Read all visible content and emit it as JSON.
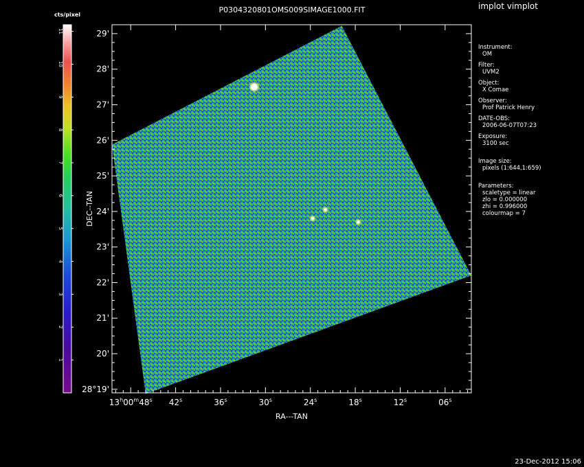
{
  "app_title": "implot vimplot",
  "timestamp": "23-Dec-2012 15:06",
  "chart_data": {
    "type": "heatmap",
    "title": "P0304320801OMS009SIMAGE1000.FIT",
    "xlabel": "RA---TAN",
    "ylabel": "DEC--TAN",
    "x_ticks": [
      {
        "h": "13",
        "m": "00",
        "s": "48"
      },
      {
        "s": "42"
      },
      {
        "s": "36"
      },
      {
        "s": "30"
      },
      {
        "s": "24"
      },
      {
        "s": "18"
      },
      {
        "s": "12"
      },
      {
        "s": "06"
      }
    ],
    "y_ticks": [
      "28°19'",
      "20'",
      "21'",
      "22'",
      "23'",
      "24'",
      "25'",
      "26'",
      "27'",
      "28'",
      "29'"
    ],
    "x_tick_values_sec": [
      48,
      42,
      36,
      30,
      24,
      18,
      12,
      6
    ],
    "y_tick_values_arcmin": [
      19,
      20,
      21,
      22,
      23,
      24,
      25,
      26,
      27,
      28,
      29
    ],
    "xlim_sec": [
      50.5,
      2.5
    ],
    "ylim_arcmin": [
      18.9,
      29.25
    ],
    "colorbar": {
      "label": "cts/pixel",
      "min": 0,
      "max": 11,
      "ticks": [
        1,
        2,
        3,
        4,
        5,
        6,
        7,
        8,
        9,
        10,
        11
      ]
    },
    "image_corners_ra_dec": [
      [
        46.0,
        18.87
      ],
      [
        50.5,
        25.88
      ],
      [
        19.8,
        29.22
      ],
      [
        2.5,
        22.2
      ]
    ],
    "sources": [
      {
        "ra_sec": 31.5,
        "dec_arcmin": 27.5,
        "size": "large"
      },
      {
        "ra_sec": 22.0,
        "dec_arcmin": 24.05,
        "size": "small"
      },
      {
        "ra_sec": 23.7,
        "dec_arcmin": 23.8,
        "size": "small"
      },
      {
        "ra_sec": 17.6,
        "dec_arcmin": 23.7,
        "size": "small"
      }
    ]
  },
  "metadata": [
    {
      "key": "Instrument:",
      "value": "OM"
    },
    {
      "key": "Filter:",
      "value": "UVM2"
    },
    {
      "key": "Object:",
      "value": "X Comae"
    },
    {
      "key": "Observer:",
      "value": "Prof Patrick Henry"
    },
    {
      "key": "DATE-OBS:",
      "value": "2006-06-07T07:23"
    },
    {
      "key": "Exposure:",
      "value": "3100 sec"
    }
  ],
  "image_size": {
    "key": "Image size:",
    "value": "pixels (1:644,1:659)"
  },
  "parameters": {
    "key": "Parameters:",
    "lines": [
      "scaletype = linear",
      "zlo = 0.000000",
      "zhi = 0.996000",
      "colourmap =   7"
    ]
  }
}
